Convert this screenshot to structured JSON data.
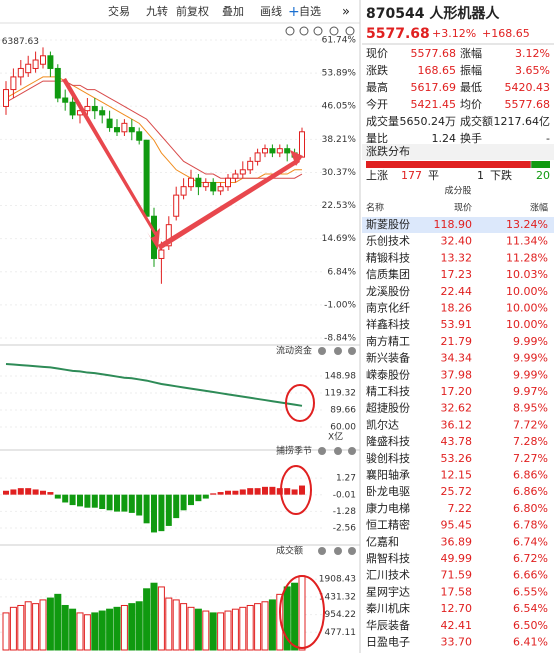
{
  "toolbar": {
    "items": [
      "交易",
      "九转",
      "前复权",
      "叠加",
      "画线",
      "自选"
    ]
  },
  "chart_data": [
    {
      "type": "candlestick",
      "annotation": "6387.63",
      "ylim": [
        -8.84,
        61.74
      ],
      "yticks": [
        {
          "value": 61.74,
          "label": "61.74%"
        },
        {
          "value": 53.89,
          "label": "53.89%"
        },
        {
          "value": 46.05,
          "label": "46.05%"
        },
        {
          "value": 38.21,
          "label": "38.21%"
        },
        {
          "value": 30.37,
          "label": "30.37%"
        },
        {
          "value": 22.53,
          "label": "22.53%"
        },
        {
          "value": 14.69,
          "label": "14.69%"
        },
        {
          "value": 6.84,
          "label": "6.84%"
        },
        {
          "value": -1.0,
          "label": "-1.00%"
        },
        {
          "value": -8.84,
          "label": "-8.84%"
        }
      ],
      "open": [
        46,
        50,
        53,
        54,
        55,
        56,
        58,
        55,
        48,
        47,
        44,
        45,
        46,
        45,
        43,
        41,
        40,
        41,
        40,
        38,
        20,
        10,
        13,
        20,
        25,
        27,
        29,
        27,
        28,
        26,
        27,
        29,
        30,
        31,
        33,
        35,
        36,
        35,
        36,
        35,
        34
      ],
      "close": [
        50,
        53,
        55,
        56,
        57,
        58,
        55,
        48,
        47,
        44,
        45,
        46,
        45,
        44,
        41,
        40,
        42,
        40,
        38,
        20,
        10,
        12,
        18,
        25,
        27,
        29,
        27,
        28,
        26,
        27,
        29,
        30,
        31,
        33,
        35,
        36,
        35,
        36,
        35,
        34,
        40
      ],
      "high": [
        52,
        55,
        57,
        58,
        59,
        60,
        59,
        56,
        50,
        49,
        47,
        48,
        48,
        46,
        45,
        43,
        43,
        43,
        41,
        38,
        22,
        14,
        20,
        27,
        29,
        31,
        30,
        29,
        29,
        28,
        30,
        31,
        33,
        34,
        36,
        37,
        37,
        37,
        37,
        36,
        41
      ],
      "low": [
        44,
        48,
        51,
        53,
        54,
        55,
        53,
        47,
        45,
        43,
        42,
        44,
        43,
        42,
        40,
        39,
        39,
        38,
        37,
        19,
        8,
        4,
        12,
        19,
        24,
        26,
        25,
        26,
        25,
        25,
        26,
        28,
        29,
        30,
        32,
        34,
        34,
        34,
        33,
        33,
        34
      ],
      "up_color": "#e02020",
      "down_color": "#109a10",
      "series": [
        {
          "color": "#f08c1e",
          "values": [
            48,
            49,
            50,
            51,
            52,
            53,
            53,
            53,
            52,
            51,
            50,
            49,
            48,
            47,
            46,
            45,
            44,
            43,
            42,
            40,
            38,
            35,
            33,
            31,
            30,
            29,
            28,
            28,
            28,
            28,
            28,
            28,
            29,
            29,
            29,
            30,
            30,
            30,
            30,
            31,
            31
          ]
        },
        {
          "color": "#d84a4a",
          "values": [
            47,
            48,
            49,
            50,
            51,
            52,
            52,
            52,
            52,
            51,
            51,
            50,
            50,
            49,
            48,
            47,
            46,
            45,
            44,
            43,
            41,
            39,
            37,
            35,
            33,
            32,
            31,
            30,
            30,
            29,
            29,
            29,
            29,
            29,
            29,
            29,
            29,
            29,
            29,
            29,
            30
          ]
        }
      ]
    },
    {
      "type": "line",
      "title": "流动资金",
      "unit": "X亿",
      "color": "#2e8b57",
      "ylim": [
        54.8,
        176.9
      ],
      "yticks": [
        148.98,
        119.32,
        89.66,
        {
          "value": 60,
          "label": "60.00"
        }
      ],
      "values": [
        170,
        169,
        168,
        167,
        166,
        165,
        164,
        162,
        160,
        158,
        157,
        155,
        154,
        152,
        150,
        148,
        146,
        145,
        143,
        141,
        138,
        135,
        133,
        131,
        129,
        127,
        125,
        123,
        121,
        119,
        117,
        115,
        113,
        111,
        109,
        107,
        105,
        103,
        101,
        99,
        97
      ]
    },
    {
      "type": "bar",
      "title": "捕捞季节",
      "up_color": "#e02020",
      "down_color": "#109a10",
      "ylim": [
        -3.48,
        2.66
      ],
      "yticks": [
        1.27,
        -0.01,
        -1.28,
        -2.56
      ],
      "values": [
        0.3,
        0.4,
        0.5,
        0.5,
        0.4,
        0.3,
        0.2,
        -0.3,
        -0.6,
        -0.8,
        -0.9,
        -1.0,
        -1.0,
        -1.1,
        -1.2,
        -1.3,
        -1.3,
        -1.4,
        -1.6,
        -2.2,
        -2.9,
        -2.8,
        -2.4,
        -1.8,
        -1.2,
        -0.8,
        -0.5,
        -0.3,
        0.1,
        0.2,
        0.3,
        0.3,
        0.4,
        0.5,
        0.5,
        0.6,
        0.6,
        0.5,
        0.5,
        0.4,
        0.7
      ]
    },
    {
      "type": "volume",
      "title": "成交额",
      "ylim": [
        0,
        2426
      ],
      "yticks": [
        1908.43,
        1431.32,
        954.22,
        477.11
      ],
      "values": [
        1000,
        1150,
        1200,
        1300,
        1250,
        1350,
        1400,
        1500,
        1200,
        1100,
        1000,
        950,
        1000,
        1050,
        1100,
        1150,
        1200,
        1250,
        1300,
        1650,
        1800,
        1700,
        1400,
        1350,
        1250,
        1150,
        1100,
        1050,
        1000,
        1000,
        1050,
        1100,
        1150,
        1200,
        1250,
        1300,
        1350,
        1500,
        1700,
        1800,
        2000
      ]
    }
  ],
  "quote": {
    "title": "870544 人形机器人",
    "price": "5577.68",
    "change_pct": "+3.12%",
    "change": "+168.65",
    "rows": [
      [
        "现价",
        "5577.68",
        "涨幅",
        "3.12%"
      ],
      [
        "涨跌",
        "168.65",
        "振幅",
        "3.65%"
      ],
      [
        "最高",
        "5617.69",
        "最低",
        "5420.43"
      ],
      [
        "今开",
        "5421.45",
        "均价",
        "5577.68"
      ],
      [
        "成交量",
        "5650.24万",
        "成交额",
        "1217.64亿"
      ],
      [
        "量比",
        "1.24",
        "换手",
        "-"
      ]
    ]
  },
  "distribution": {
    "title": "涨跌分布",
    "up_label": "上涨",
    "up": 177,
    "flat_label": "平",
    "flat": 1,
    "down_label": "下跌",
    "down": 20
  },
  "table": {
    "title": "成分股",
    "header": [
      "名称",
      "现价",
      "涨幅"
    ],
    "rows": [
      [
        "斯菱股份",
        "118.90",
        "13.24%"
      ],
      [
        "乐创技术",
        "32.40",
        "11.34%"
      ],
      [
        "精锻科技",
        "13.32",
        "11.28%"
      ],
      [
        "信质集团",
        "17.23",
        "10.03%"
      ],
      [
        "龙溪股份",
        "22.44",
        "10.00%"
      ],
      [
        "南京化纤",
        "18.26",
        "10.00%"
      ],
      [
        "祥鑫科技",
        "53.91",
        "10.00%"
      ],
      [
        "南方精工",
        "21.79",
        "9.99%"
      ],
      [
        "新兴装备",
        "34.34",
        "9.99%"
      ],
      [
        "嵘泰股份",
        "37.98",
        "9.99%"
      ],
      [
        "精工科技",
        "17.20",
        "9.97%"
      ],
      [
        "超捷股份",
        "32.62",
        "8.95%"
      ],
      [
        "凯尔达",
        "36.12",
        "7.72%"
      ],
      [
        "隆盛科技",
        "43.78",
        "7.28%"
      ],
      [
        "骏创科技",
        "53.26",
        "7.27%"
      ],
      [
        "襄阳轴承",
        "12.15",
        "6.86%"
      ],
      [
        "卧龙电驱",
        "25.72",
        "6.86%"
      ],
      [
        "康力电梯",
        "7.22",
        "6.80%"
      ],
      [
        "恒工精密",
        "95.45",
        "6.78%"
      ],
      [
        "亿嘉和",
        "36.89",
        "6.74%"
      ],
      [
        "鼎智科技",
        "49.99",
        "6.72%"
      ],
      [
        "汇川技术",
        "71.59",
        "6.66%"
      ],
      [
        "星网宇达",
        "17.58",
        "6.55%"
      ],
      [
        "秦川机床",
        "12.70",
        "6.54%"
      ],
      [
        "华辰装备",
        "42.41",
        "6.50%"
      ],
      [
        "日盈电子",
        "33.70",
        "6.41%"
      ]
    ]
  }
}
